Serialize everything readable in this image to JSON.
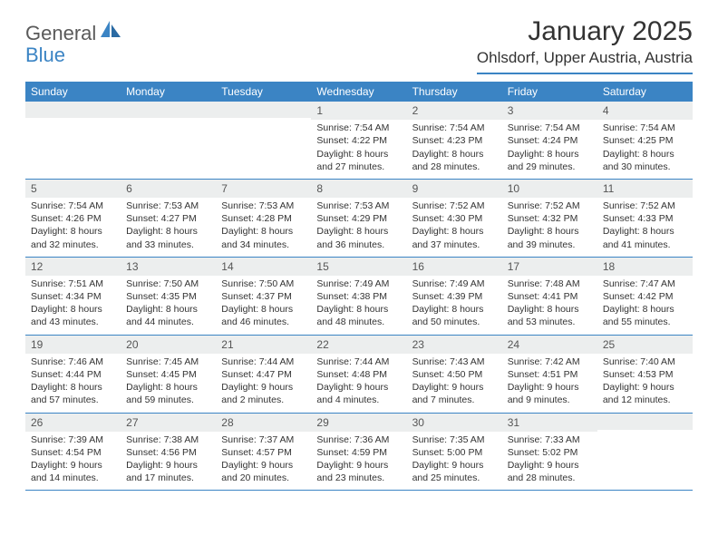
{
  "brand": {
    "part1": "General",
    "part2": "Blue"
  },
  "title": "January 2025",
  "location": "Ohlsdorf, Upper Austria, Austria",
  "colors": {
    "accent": "#3b84c4",
    "header_bg": "#3b84c4",
    "daynum_bg": "#eceeee",
    "text": "#333333",
    "background": "#ffffff"
  },
  "dow": [
    "Sunday",
    "Monday",
    "Tuesday",
    "Wednesday",
    "Thursday",
    "Friday",
    "Saturday"
  ],
  "weeks": [
    [
      {
        "n": "",
        "sr": "",
        "ss": "",
        "dl": ""
      },
      {
        "n": "",
        "sr": "",
        "ss": "",
        "dl": ""
      },
      {
        "n": "",
        "sr": "",
        "ss": "",
        "dl": ""
      },
      {
        "n": "1",
        "sr": "Sunrise: 7:54 AM",
        "ss": "Sunset: 4:22 PM",
        "dl": "Daylight: 8 hours and 27 minutes."
      },
      {
        "n": "2",
        "sr": "Sunrise: 7:54 AM",
        "ss": "Sunset: 4:23 PM",
        "dl": "Daylight: 8 hours and 28 minutes."
      },
      {
        "n": "3",
        "sr": "Sunrise: 7:54 AM",
        "ss": "Sunset: 4:24 PM",
        "dl": "Daylight: 8 hours and 29 minutes."
      },
      {
        "n": "4",
        "sr": "Sunrise: 7:54 AM",
        "ss": "Sunset: 4:25 PM",
        "dl": "Daylight: 8 hours and 30 minutes."
      }
    ],
    [
      {
        "n": "5",
        "sr": "Sunrise: 7:54 AM",
        "ss": "Sunset: 4:26 PM",
        "dl": "Daylight: 8 hours and 32 minutes."
      },
      {
        "n": "6",
        "sr": "Sunrise: 7:53 AM",
        "ss": "Sunset: 4:27 PM",
        "dl": "Daylight: 8 hours and 33 minutes."
      },
      {
        "n": "7",
        "sr": "Sunrise: 7:53 AM",
        "ss": "Sunset: 4:28 PM",
        "dl": "Daylight: 8 hours and 34 minutes."
      },
      {
        "n": "8",
        "sr": "Sunrise: 7:53 AM",
        "ss": "Sunset: 4:29 PM",
        "dl": "Daylight: 8 hours and 36 minutes."
      },
      {
        "n": "9",
        "sr": "Sunrise: 7:52 AM",
        "ss": "Sunset: 4:30 PM",
        "dl": "Daylight: 8 hours and 37 minutes."
      },
      {
        "n": "10",
        "sr": "Sunrise: 7:52 AM",
        "ss": "Sunset: 4:32 PM",
        "dl": "Daylight: 8 hours and 39 minutes."
      },
      {
        "n": "11",
        "sr": "Sunrise: 7:52 AM",
        "ss": "Sunset: 4:33 PM",
        "dl": "Daylight: 8 hours and 41 minutes."
      }
    ],
    [
      {
        "n": "12",
        "sr": "Sunrise: 7:51 AM",
        "ss": "Sunset: 4:34 PM",
        "dl": "Daylight: 8 hours and 43 minutes."
      },
      {
        "n": "13",
        "sr": "Sunrise: 7:50 AM",
        "ss": "Sunset: 4:35 PM",
        "dl": "Daylight: 8 hours and 44 minutes."
      },
      {
        "n": "14",
        "sr": "Sunrise: 7:50 AM",
        "ss": "Sunset: 4:37 PM",
        "dl": "Daylight: 8 hours and 46 minutes."
      },
      {
        "n": "15",
        "sr": "Sunrise: 7:49 AM",
        "ss": "Sunset: 4:38 PM",
        "dl": "Daylight: 8 hours and 48 minutes."
      },
      {
        "n": "16",
        "sr": "Sunrise: 7:49 AM",
        "ss": "Sunset: 4:39 PM",
        "dl": "Daylight: 8 hours and 50 minutes."
      },
      {
        "n": "17",
        "sr": "Sunrise: 7:48 AM",
        "ss": "Sunset: 4:41 PM",
        "dl": "Daylight: 8 hours and 53 minutes."
      },
      {
        "n": "18",
        "sr": "Sunrise: 7:47 AM",
        "ss": "Sunset: 4:42 PM",
        "dl": "Daylight: 8 hours and 55 minutes."
      }
    ],
    [
      {
        "n": "19",
        "sr": "Sunrise: 7:46 AM",
        "ss": "Sunset: 4:44 PM",
        "dl": "Daylight: 8 hours and 57 minutes."
      },
      {
        "n": "20",
        "sr": "Sunrise: 7:45 AM",
        "ss": "Sunset: 4:45 PM",
        "dl": "Daylight: 8 hours and 59 minutes."
      },
      {
        "n": "21",
        "sr": "Sunrise: 7:44 AM",
        "ss": "Sunset: 4:47 PM",
        "dl": "Daylight: 9 hours and 2 minutes."
      },
      {
        "n": "22",
        "sr": "Sunrise: 7:44 AM",
        "ss": "Sunset: 4:48 PM",
        "dl": "Daylight: 9 hours and 4 minutes."
      },
      {
        "n": "23",
        "sr": "Sunrise: 7:43 AM",
        "ss": "Sunset: 4:50 PM",
        "dl": "Daylight: 9 hours and 7 minutes."
      },
      {
        "n": "24",
        "sr": "Sunrise: 7:42 AM",
        "ss": "Sunset: 4:51 PM",
        "dl": "Daylight: 9 hours and 9 minutes."
      },
      {
        "n": "25",
        "sr": "Sunrise: 7:40 AM",
        "ss": "Sunset: 4:53 PM",
        "dl": "Daylight: 9 hours and 12 minutes."
      }
    ],
    [
      {
        "n": "26",
        "sr": "Sunrise: 7:39 AM",
        "ss": "Sunset: 4:54 PM",
        "dl": "Daylight: 9 hours and 14 minutes."
      },
      {
        "n": "27",
        "sr": "Sunrise: 7:38 AM",
        "ss": "Sunset: 4:56 PM",
        "dl": "Daylight: 9 hours and 17 minutes."
      },
      {
        "n": "28",
        "sr": "Sunrise: 7:37 AM",
        "ss": "Sunset: 4:57 PM",
        "dl": "Daylight: 9 hours and 20 minutes."
      },
      {
        "n": "29",
        "sr": "Sunrise: 7:36 AM",
        "ss": "Sunset: 4:59 PM",
        "dl": "Daylight: 9 hours and 23 minutes."
      },
      {
        "n": "30",
        "sr": "Sunrise: 7:35 AM",
        "ss": "Sunset: 5:00 PM",
        "dl": "Daylight: 9 hours and 25 minutes."
      },
      {
        "n": "31",
        "sr": "Sunrise: 7:33 AM",
        "ss": "Sunset: 5:02 PM",
        "dl": "Daylight: 9 hours and 28 minutes."
      },
      {
        "n": "",
        "sr": "",
        "ss": "",
        "dl": ""
      }
    ]
  ]
}
